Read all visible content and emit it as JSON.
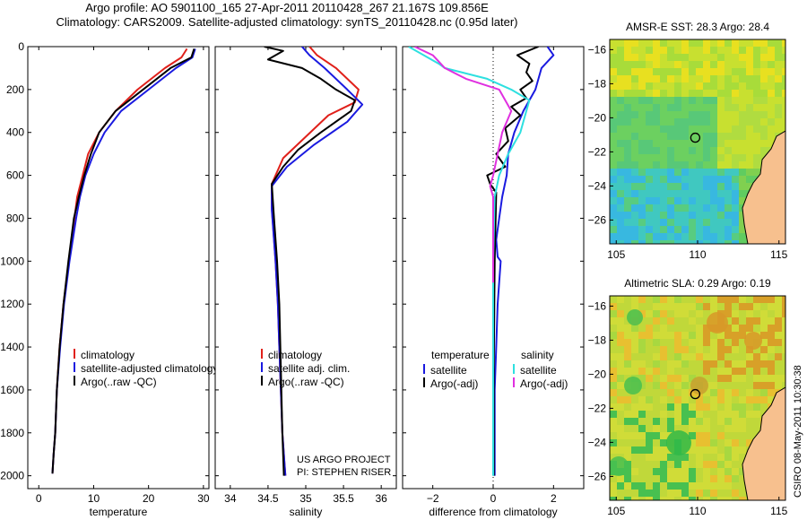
{
  "header": {
    "line1": "Argo profile: AO 5901100_165 27-Apr-2011 20110428_267 21.167S 109.856E",
    "line2": "Climatology: CARS2009. Satellite-adjusted climatology: synTS_20110428.nc (0.95d later)"
  },
  "footer": {
    "project": "US ARGO PROJECT",
    "pi": "PI: STEPHEN RISER",
    "stamp": "CSIRO 08-May-2011 10:30:38"
  },
  "colors": {
    "climatology": "#e0201a",
    "satellite": "#1a1ae0",
    "argo": "#000000",
    "satellite_salinity": "#2ee0e0",
    "argo_salinity": "#e030e0"
  },
  "chart_data": [
    {
      "id": "temperature",
      "type": "line",
      "xlabel": "temperature",
      "xlim": [
        -2,
        31
      ],
      "ylim": [
        0,
        2060
      ],
      "y_reversed": true,
      "xticks": [
        0,
        10,
        20,
        30
      ],
      "yticks": [
        0,
        200,
        400,
        600,
        800,
        1000,
        1200,
        1400,
        1600,
        1800,
        2000
      ],
      "legend": [
        "climatology",
        "satellite-adjusted climatology",
        "Argo(..raw -QC)"
      ],
      "series": [
        {
          "name": "climatology",
          "color": "climatology",
          "x": [
            27,
            26,
            23,
            18,
            14,
            11,
            9,
            8,
            7,
            6.5,
            5.5,
            4.5,
            3.8,
            3.3,
            3,
            2.7,
            2.5
          ],
          "y": [
            10,
            50,
            100,
            200,
            300,
            400,
            500,
            600,
            700,
            800,
            1000,
            1200,
            1400,
            1600,
            1800,
            1900,
            1990
          ]
        },
        {
          "name": "satellite-adjusted climatology",
          "color": "satellite",
          "x": [
            28.5,
            28,
            25,
            20,
            15,
            12,
            10,
            8.5,
            7.5,
            6.8,
            5.6,
            4.6,
            3.9,
            3.3,
            3,
            2.7,
            2.5
          ],
          "y": [
            10,
            50,
            100,
            200,
            300,
            400,
            500,
            600,
            700,
            800,
            1000,
            1200,
            1400,
            1600,
            1800,
            1900,
            1990
          ]
        },
        {
          "name": "Argo(..raw -QC)",
          "color": "argo",
          "x": [
            28.3,
            27.8,
            24,
            19,
            14,
            11,
            9.5,
            8.3,
            7.3,
            6.4,
            5.4,
            4.5,
            3.8,
            3.3,
            3,
            2.7,
            2.5
          ],
          "y": [
            10,
            50,
            100,
            200,
            300,
            400,
            500,
            600,
            700,
            800,
            1000,
            1200,
            1400,
            1600,
            1800,
            1900,
            1990
          ]
        }
      ]
    },
    {
      "id": "salinity",
      "type": "line",
      "xlabel": "salinity",
      "xlim": [
        33.8,
        36.2
      ],
      "ylim": [
        0,
        2060
      ],
      "y_reversed": true,
      "xticks": [
        34,
        34.5,
        35,
        35.5,
        36
      ],
      "legend": [
        "climatology",
        "satellite adj. clim.",
        "Argo(..raw -QC)"
      ],
      "series": [
        {
          "name": "climatology",
          "color": "climatology",
          "x": [
            35.05,
            35.15,
            35.4,
            35.7,
            35.65,
            35.3,
            35.0,
            34.7,
            34.55,
            34.55,
            34.6,
            34.63,
            34.65,
            34.67,
            34.69,
            34.72,
            34.73
          ],
          "y": [
            0,
            40,
            100,
            200,
            260,
            320,
            420,
            520,
            640,
            750,
            1000,
            1200,
            1400,
            1600,
            1800,
            1950,
            2000
          ]
        },
        {
          "name": "satellite adj. clim.",
          "color": "satellite",
          "x": [
            34.95,
            35.05,
            35.25,
            35.55,
            35.75,
            35.55,
            35.1,
            34.75,
            34.55,
            34.55,
            34.6,
            34.63,
            34.65,
            34.67,
            34.69,
            34.72,
            34.73
          ],
          "y": [
            0,
            40,
            100,
            200,
            270,
            350,
            460,
            560,
            650,
            760,
            1000,
            1200,
            1400,
            1600,
            1800,
            1950,
            2000
          ]
        },
        {
          "name": "Argo(..raw -QC)",
          "color": "argo",
          "x": [
            34.45,
            34.7,
            34.5,
            34.95,
            35.2,
            35.4,
            35.65,
            35.6,
            35.2,
            34.9,
            34.7,
            34.55,
            34.58,
            34.62,
            34.65,
            34.67,
            34.69,
            34.71
          ],
          "y": [
            0,
            20,
            60,
            100,
            150,
            200,
            250,
            300,
            400,
            480,
            560,
            640,
            800,
            1000,
            1200,
            1500,
            1800,
            2000
          ]
        }
      ]
    },
    {
      "id": "difference",
      "type": "line",
      "xlabel": "difference from climatology",
      "xlim": [
        -3,
        3
      ],
      "ylim": [
        0,
        2060
      ],
      "y_reversed": true,
      "xticks": [
        -2,
        0,
        2
      ],
      "legend_groups": [
        {
          "title": "temperature",
          "entries": [
            "satellite",
            "Argo(-adj)"
          ]
        },
        {
          "title": "salinity",
          "entries": [
            "satellite",
            "Argo(-adj)"
          ]
        }
      ],
      "series": [
        {
          "name": "temperature satellite",
          "color": "satellite",
          "x": [
            1.8,
            2.0,
            1.6,
            1.4,
            1.0,
            0.7,
            0.5,
            0.45,
            0.3,
            0.2,
            0.1,
            0.15,
            0.25,
            0.15,
            0.1,
            0.05,
            0.05,
            0.05
          ],
          "y": [
            0,
            40,
            100,
            200,
            300,
            400,
            500,
            600,
            700,
            800,
            900,
            980,
            1000,
            1200,
            1400,
            1600,
            1800,
            2000
          ]
        },
        {
          "name": "temperature Argo(-adj)",
          "color": "argo",
          "x": [
            1.5,
            0.8,
            1.2,
            1.1,
            1.3,
            0.9,
            1.1,
            0.6,
            0.9,
            0.4,
            0.5,
            0.1,
            0.4,
            -0.2,
            -0.1,
            0.1,
            0.05,
            0.02,
            0.02
          ],
          "y": [
            0,
            40,
            80,
            120,
            160,
            200,
            240,
            280,
            320,
            380,
            440,
            500,
            560,
            600,
            640,
            680,
            1000,
            1500,
            2000
          ]
        },
        {
          "name": "salinity satellite",
          "color": "satellite_salinity",
          "x": [
            -2.8,
            -1.8,
            -1.6,
            -0.2,
            0.6,
            1.2,
            1.1,
            0.9,
            0.5,
            0.2,
            0.05,
            0.0,
            0.0,
            0.0
          ],
          "y": [
            0,
            80,
            100,
            150,
            200,
            250,
            300,
            400,
            500,
            600,
            700,
            1000,
            1500,
            2000
          ]
        },
        {
          "name": "salinity Argo(-adj)",
          "color": "argo_salinity",
          "x": [
            -2.6,
            -2.0,
            -1.6,
            -0.9,
            0.2,
            0.6,
            0.3,
            0.15,
            0.0,
            -0.1,
            0.0,
            0.0,
            0.0
          ],
          "y": [
            0,
            40,
            100,
            150,
            200,
            300,
            400,
            500,
            600,
            650,
            700,
            1000,
            1100
          ]
        }
      ]
    },
    {
      "id": "sst_map",
      "type": "heatmap",
      "title": "AMSR-E SST: 28.3 Argo: 28.4",
      "xlim": [
        104.6,
        115.4
      ],
      "ylim": [
        -27.4,
        -15.4
      ],
      "xticks": [
        105,
        110,
        115
      ],
      "yticks": [
        -16,
        -18,
        -20,
        -22,
        -24,
        -26
      ],
      "argo_position": {
        "lon": 109.856,
        "lat": -21.167
      }
    },
    {
      "id": "sla_map",
      "type": "heatmap",
      "title": "Altimetric SLA: 0.29 Argo: 0.19",
      "xlim": [
        104.6,
        115.4
      ],
      "ylim": [
        -27.4,
        -15.4
      ],
      "xticks": [
        105,
        110,
        115
      ],
      "yticks": [
        -16,
        -18,
        -20,
        -22,
        -24,
        -26
      ],
      "argo_position": {
        "lon": 109.856,
        "lat": -21.167
      }
    }
  ]
}
